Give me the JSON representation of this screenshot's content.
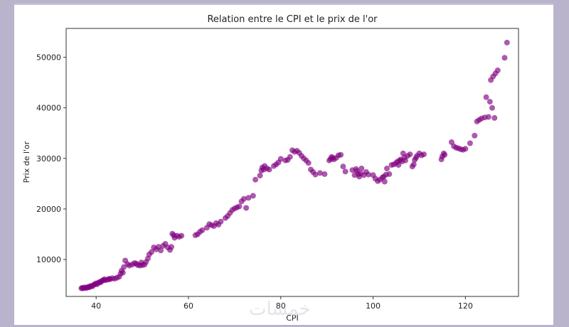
{
  "watermark_text": "خمسات",
  "colors": {
    "background": "#b9b4cb",
    "marker": "#800080"
  },
  "chart_data": {
    "type": "scatter",
    "title": "Relation entre le CPI et le prix de l'or",
    "xlabel": "CPI",
    "ylabel": "Prix de l'or",
    "xlim": [
      33.5,
      131.5
    ],
    "ylim": [
      2700,
      55700
    ],
    "xticks": [
      40,
      60,
      80,
      100,
      120
    ],
    "yticks": [
      10000,
      20000,
      30000,
      40000,
      50000
    ],
    "grid": false,
    "marker_color": "#800080",
    "marker_alpha": 0.65,
    "points": [
      [
        36.8,
        4300
      ],
      [
        37.0,
        4400
      ],
      [
        37.2,
        4300
      ],
      [
        37.5,
        4500
      ],
      [
        37.8,
        4350
      ],
      [
        38.0,
        4450
      ],
      [
        38.3,
        4600
      ],
      [
        38.5,
        4500
      ],
      [
        38.7,
        4700
      ],
      [
        39.0,
        4800
      ],
      [
        39.2,
        4700
      ],
      [
        39.5,
        5000
      ],
      [
        39.7,
        5100
      ],
      [
        40.0,
        5300
      ],
      [
        40.2,
        5100
      ],
      [
        40.5,
        5400
      ],
      [
        40.8,
        5600
      ],
      [
        41.0,
        5500
      ],
      [
        41.3,
        5800
      ],
      [
        41.5,
        5900
      ],
      [
        41.8,
        6100
      ],
      [
        42.0,
        5900
      ],
      [
        42.5,
        6000
      ],
      [
        42.8,
        6200
      ],
      [
        43.0,
        6100
      ],
      [
        43.5,
        6300
      ],
      [
        44.0,
        6200
      ],
      [
        44.5,
        6400
      ],
      [
        45.0,
        6600
      ],
      [
        45.3,
        7200
      ],
      [
        45.5,
        7800
      ],
      [
        45.8,
        7400
      ],
      [
        46.0,
        8500
      ],
      [
        46.3,
        9800
      ],
      [
        46.8,
        9100
      ],
      [
        47.2,
        8800
      ],
      [
        47.8,
        9000
      ],
      [
        48.3,
        9300
      ],
      [
        48.7,
        9200
      ],
      [
        49.0,
        8900
      ],
      [
        49.5,
        8800
      ],
      [
        49.8,
        9400
      ],
      [
        50.0,
        8900
      ],
      [
        50.5,
        9000
      ],
      [
        50.8,
        9500
      ],
      [
        51.2,
        10200
      ],
      [
        51.5,
        11000
      ],
      [
        52.0,
        11500
      ],
      [
        52.5,
        12400
      ],
      [
        53.0,
        12000
      ],
      [
        53.5,
        12500
      ],
      [
        54.0,
        11800
      ],
      [
        54.5,
        12700
      ],
      [
        55.0,
        13100
      ],
      [
        55.5,
        12400
      ],
      [
        56.0,
        11900
      ],
      [
        56.3,
        12500
      ],
      [
        56.5,
        15100
      ],
      [
        56.8,
        14800
      ],
      [
        57.0,
        14300
      ],
      [
        57.5,
        14700
      ],
      [
        58.0,
        14500
      ],
      [
        58.5,
        14700
      ],
      [
        61.5,
        14800
      ],
      [
        62.0,
        15000
      ],
      [
        62.5,
        15500
      ],
      [
        63.0,
        15800
      ],
      [
        64.0,
        16300
      ],
      [
        64.5,
        17000
      ],
      [
        65.0,
        16800
      ],
      [
        65.5,
        16600
      ],
      [
        66.0,
        17200
      ],
      [
        66.5,
        16900
      ],
      [
        67.0,
        17500
      ],
      [
        68.0,
        18200
      ],
      [
        68.5,
        18600
      ],
      [
        69.0,
        19200
      ],
      [
        69.5,
        19800
      ],
      [
        70.0,
        20100
      ],
      [
        70.5,
        20300
      ],
      [
        71.0,
        20500
      ],
      [
        71.5,
        21500
      ],
      [
        72.0,
        22000
      ],
      [
        72.5,
        20200
      ],
      [
        73.0,
        22200
      ],
      [
        74.0,
        22600
      ],
      [
        74.5,
        25800
      ],
      [
        75.5,
        26600
      ],
      [
        75.8,
        27600
      ],
      [
        76.0,
        28200
      ],
      [
        76.3,
        27800
      ],
      [
        76.5,
        28500
      ],
      [
        77.0,
        28000
      ],
      [
        77.5,
        27800
      ],
      [
        78.5,
        28500
      ],
      [
        79.0,
        28800
      ],
      [
        79.5,
        29200
      ],
      [
        80.0,
        29900
      ],
      [
        81.0,
        29600
      ],
      [
        81.5,
        29700
      ],
      [
        82.0,
        30300
      ],
      [
        82.5,
        31600
      ],
      [
        83.0,
        31300
      ],
      [
        83.5,
        31500
      ],
      [
        84.0,
        31100
      ],
      [
        84.5,
        30500
      ],
      [
        85.0,
        30000
      ],
      [
        85.5,
        29600
      ],
      [
        86.0,
        29100
      ],
      [
        86.5,
        27800
      ],
      [
        87.0,
        27300
      ],
      [
        87.5,
        26800
      ],
      [
        88.5,
        27100
      ],
      [
        89.5,
        26900
      ],
      [
        90.5,
        29600
      ],
      [
        90.8,
        29900
      ],
      [
        91.0,
        30300
      ],
      [
        91.3,
        30100
      ],
      [
        91.5,
        29800
      ],
      [
        92.0,
        30100
      ],
      [
        92.5,
        30600
      ],
      [
        93.0,
        30700
      ],
      [
        93.5,
        28400
      ],
      [
        94.0,
        27400
      ],
      [
        95.5,
        27700
      ],
      [
        96.0,
        26700
      ],
      [
        96.3,
        27900
      ],
      [
        96.5,
        27500
      ],
      [
        96.8,
        26900
      ],
      [
        97.0,
        26400
      ],
      [
        97.3,
        27000
      ],
      [
        97.5,
        28000
      ],
      [
        98.0,
        26700
      ],
      [
        98.5,
        27300
      ],
      [
        99.0,
        26800
      ],
      [
        100.0,
        26700
      ],
      [
        100.5,
        26000
      ],
      [
        101.0,
        25500
      ],
      [
        101.5,
        25800
      ],
      [
        102.0,
        26200
      ],
      [
        102.3,
        26400
      ],
      [
        102.5,
        25400
      ],
      [
        102.8,
        26800
      ],
      [
        103.0,
        28000
      ],
      [
        103.5,
        26900
      ],
      [
        104.0,
        28700
      ],
      [
        104.5,
        28800
      ],
      [
        105.0,
        29100
      ],
      [
        105.3,
        29400
      ],
      [
        105.5,
        28700
      ],
      [
        105.8,
        29600
      ],
      [
        106.0,
        29800
      ],
      [
        106.3,
        29400
      ],
      [
        106.5,
        31000
      ],
      [
        106.8,
        30200
      ],
      [
        107.0,
        29600
      ],
      [
        107.5,
        30500
      ],
      [
        108.0,
        30800
      ],
      [
        108.5,
        28400
      ],
      [
        108.8,
        28800
      ],
      [
        109.0,
        29700
      ],
      [
        109.3,
        30100
      ],
      [
        109.5,
        30500
      ],
      [
        110.0,
        31000
      ],
      [
        110.5,
        30600
      ],
      [
        111.0,
        30800
      ],
      [
        114.8,
        29800
      ],
      [
        115.0,
        30400
      ],
      [
        115.3,
        31000
      ],
      [
        115.5,
        30700
      ],
      [
        117.0,
        33200
      ],
      [
        117.5,
        32400
      ],
      [
        118.0,
        32100
      ],
      [
        118.5,
        32000
      ],
      [
        119.0,
        31800
      ],
      [
        119.5,
        31700
      ],
      [
        120.0,
        31900
      ],
      [
        121.0,
        33000
      ],
      [
        122.0,
        34500
      ],
      [
        122.5,
        37300
      ],
      [
        123.0,
        37600
      ],
      [
        123.5,
        37900
      ],
      [
        124.2,
        38100
      ],
      [
        124.5,
        42100
      ],
      [
        125.0,
        38200
      ],
      [
        125.3,
        41200
      ],
      [
        125.5,
        45500
      ],
      [
        125.8,
        40000
      ],
      [
        126.0,
        46200
      ],
      [
        126.3,
        38000
      ],
      [
        126.5,
        46800
      ],
      [
        127.0,
        47400
      ],
      [
        128.5,
        49900
      ],
      [
        129.0,
        52900
      ]
    ]
  }
}
